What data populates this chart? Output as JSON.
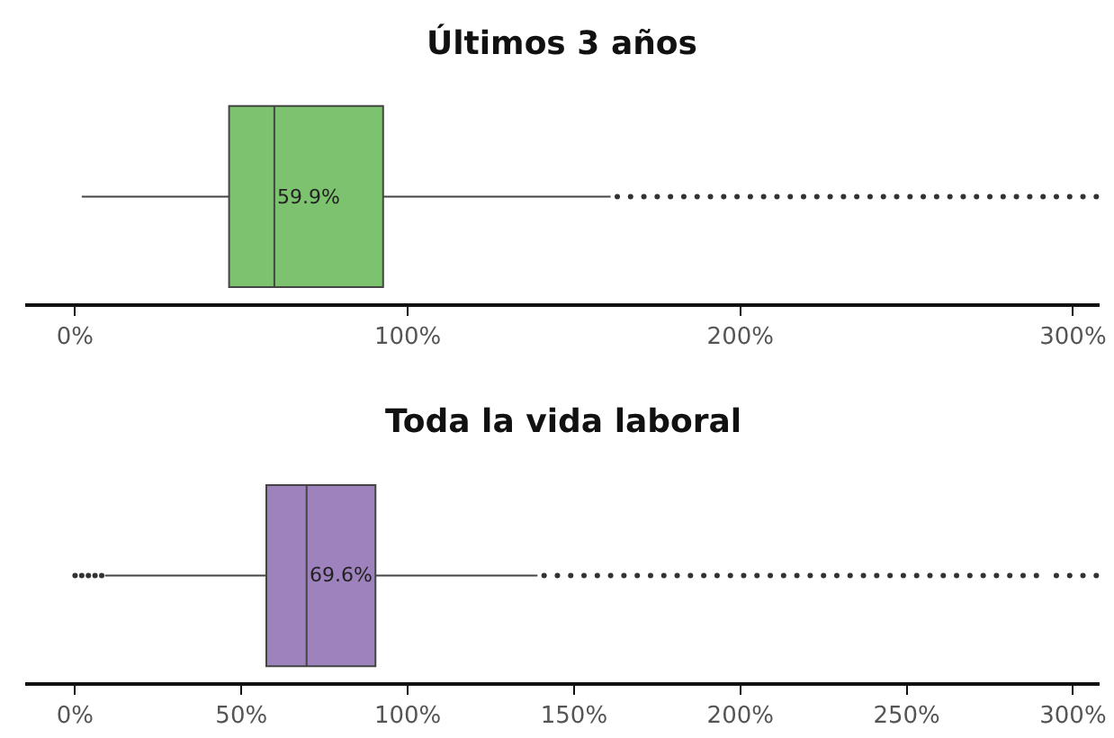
{
  "chart_data": [
    {
      "type": "box",
      "title": "Últimos 3 años",
      "categories": [
        null
      ],
      "orientation": "horizontal",
      "color": "#7dc36f",
      "tick_labels": "x",
      "boxes": [
        {
          "low": 2,
          "q1": 46.3,
          "median": 59.9,
          "q3": 92.6,
          "high": 161,
          "outliers": [
            163,
            167,
            171,
            175,
            179,
            183,
            187,
            191,
            195,
            199,
            203,
            207,
            211,
            215,
            219,
            223,
            227,
            231,
            235,
            239,
            243,
            247,
            251,
            255,
            259,
            263,
            267,
            271,
            275,
            279,
            283,
            287,
            291,
            295,
            299,
            303,
            307
          ]
        }
      ],
      "annotations": [
        {
          "text": "59.9%",
          "x": 59.9
        }
      ],
      "xlim": [
        -15,
        308
      ],
      "xticks": [
        {
          "value": 0,
          "label": "0%"
        },
        {
          "value": 100,
          "label": "100%"
        },
        {
          "value": 200,
          "label": "200%"
        },
        {
          "value": 300,
          "label": "300%"
        }
      ]
    },
    {
      "type": "box",
      "title": "Toda la vida laboral",
      "categories": [
        null
      ],
      "orientation": "horizontal",
      "color": "#9e82bd",
      "tick_labels": "x",
      "boxes": [
        {
          "low": 9,
          "q1": 57.5,
          "median": 69.6,
          "q3": 90.3,
          "high": 139,
          "outliers": [
            0,
            2,
            4,
            6,
            8,
            141,
            145,
            149,
            153,
            157,
            161,
            165,
            169,
            173,
            177,
            181,
            185,
            189,
            193,
            197,
            201,
            205,
            209,
            213,
            217,
            221,
            225,
            229,
            233,
            237,
            241,
            245,
            249,
            253,
            257,
            261,
            265,
            269,
            273,
            277,
            281,
            285,
            289,
            295,
            299,
            303,
            307
          ]
        }
      ],
      "annotations": [
        {
          "text": "69.6%",
          "x": 69.6
        }
      ],
      "xlim": [
        -15,
        308
      ],
      "xticks": [
        {
          "value": 0,
          "label": "0%"
        },
        {
          "value": 50,
          "label": "50%"
        },
        {
          "value": 100,
          "label": "100%"
        },
        {
          "value": 150,
          "label": "150%"
        },
        {
          "value": 200,
          "label": "200%"
        },
        {
          "value": 250,
          "label": "250%"
        },
        {
          "value": 300,
          "label": "300%"
        }
      ]
    }
  ]
}
